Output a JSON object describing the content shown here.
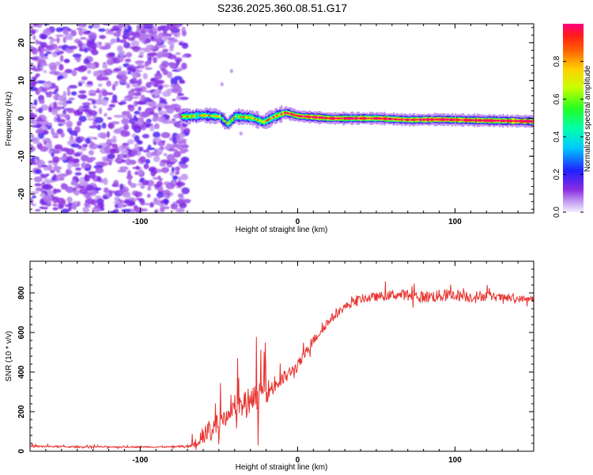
{
  "title": "S236.2025.360.08.51.G17",
  "chart_data": [
    {
      "type": "heatmap",
      "xlabel": "Height of straight line (km)",
      "ylabel": "Frequency (Hz)",
      "xlim": [
        -170,
        150
      ],
      "ylim": [
        -25,
        25
      ],
      "x_ticks": [
        -100,
        0,
        100
      ],
      "y_ticks": [
        -20,
        -10,
        0,
        10,
        20
      ],
      "noise_region_x": [
        -170,
        -72
      ],
      "ridge_points": [
        {
          "x": -70,
          "y": 0.5,
          "a": 0.55
        },
        {
          "x": -60,
          "y": 0.8,
          "a": 0.55
        },
        {
          "x": -50,
          "y": 0.5,
          "a": 0.55
        },
        {
          "x": -45,
          "y": -1.5,
          "a": 0.5
        },
        {
          "x": -40,
          "y": 0.5,
          "a": 0.55
        },
        {
          "x": -30,
          "y": 0.2,
          "a": 0.6
        },
        {
          "x": -22,
          "y": -1.0,
          "a": 0.55
        },
        {
          "x": -15,
          "y": 0.5,
          "a": 0.65
        },
        {
          "x": -8,
          "y": 1.5,
          "a": 0.75
        },
        {
          "x": 0,
          "y": 0.6,
          "a": 0.85
        },
        {
          "x": 20,
          "y": 0.0,
          "a": 0.9
        },
        {
          "x": 50,
          "y": 0.0,
          "a": 0.85
        },
        {
          "x": 70,
          "y": -0.4,
          "a": 0.85
        },
        {
          "x": 90,
          "y": -0.3,
          "a": 0.9
        },
        {
          "x": 110,
          "y": -0.5,
          "a": 0.95
        },
        {
          "x": 150,
          "y": -0.8,
          "a": 0.95
        }
      ],
      "colorbar": {
        "label": "Normalized spectral amplitude",
        "range": [
          0,
          1
        ],
        "ticks": [
          "0.0",
          "0.2",
          "0.4",
          "0.6",
          "0.8"
        ]
      }
    },
    {
      "type": "line",
      "xlabel": "Height of straight line (km)",
      "ylabel": "SNR (10 * v/v)",
      "xlim": [
        -170,
        150
      ],
      "ylim": [
        0,
        960
      ],
      "x_ticks": [
        -100,
        0,
        100
      ],
      "y_ticks": [
        0,
        200,
        400,
        600,
        800
      ],
      "color": "#e8332f",
      "series": [
        {
          "name": "SNR",
          "x": [
            -170,
            -140,
            -110,
            -80,
            -68,
            -60,
            -50,
            -40,
            -30,
            -20,
            -10,
            0,
            10,
            20,
            30,
            40,
            50,
            60,
            70,
            80,
            90,
            100,
            110,
            120,
            130,
            140,
            150
          ],
          "y": [
            25,
            22,
            22,
            22,
            25,
            80,
            150,
            220,
            260,
            300,
            360,
            430,
            560,
            660,
            730,
            770,
            780,
            790,
            790,
            780,
            785,
            790,
            780,
            785,
            775,
            770,
            770
          ],
          "noise_amplitude": [
            10,
            8,
            8,
            8,
            20,
            90,
            110,
            120,
            130,
            120,
            80,
            60,
            50,
            45,
            40,
            45,
            45,
            50,
            55,
            60,
            65,
            60,
            60,
            50,
            40,
            35,
            35
          ]
        }
      ]
    }
  ]
}
